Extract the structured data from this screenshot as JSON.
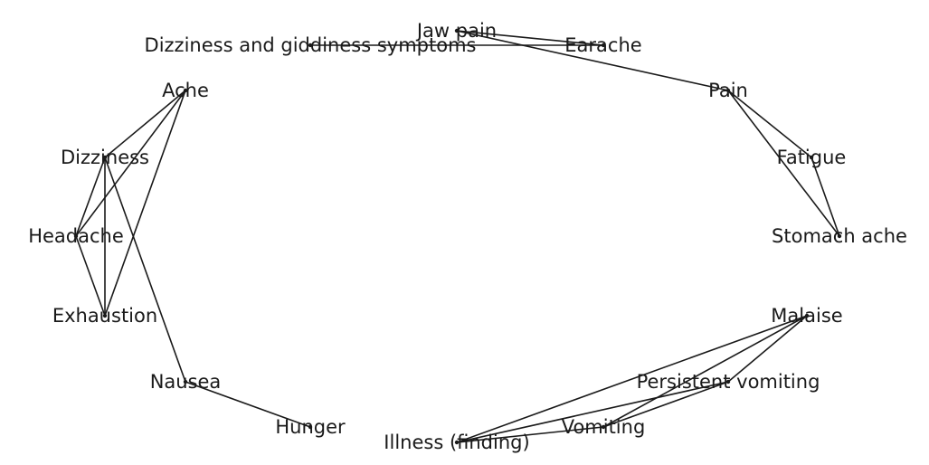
{
  "nodes": [
    {
      "id": "jaw-pain",
      "label": "Jaw pain"
    },
    {
      "id": "earache",
      "label": "Earache"
    },
    {
      "id": "dizziness-giddiness",
      "label": "Dizziness and giddiness symptoms"
    },
    {
      "id": "pain",
      "label": "Pain"
    },
    {
      "id": "ache",
      "label": "Ache"
    },
    {
      "id": "fatigue",
      "label": "Fatigue"
    },
    {
      "id": "dizziness",
      "label": "Dizziness"
    },
    {
      "id": "headache",
      "label": "Headache"
    },
    {
      "id": "stomach-ache",
      "label": "Stomach ache"
    },
    {
      "id": "exhaustion",
      "label": "Exhaustion"
    },
    {
      "id": "malaise",
      "label": "Malaise"
    },
    {
      "id": "nausea",
      "label": "Nausea"
    },
    {
      "id": "persistent-vomiting",
      "label": "Persistent vomiting"
    },
    {
      "id": "hunger",
      "label": "Hunger"
    },
    {
      "id": "vomiting",
      "label": "Vomiting"
    },
    {
      "id": "illness",
      "label": "Illness (finding)"
    }
  ],
  "edges": [
    [
      "jaw-pain",
      "earache"
    ],
    [
      "jaw-pain",
      "pain"
    ],
    [
      "earache",
      "dizziness-giddiness"
    ],
    [
      "pain",
      "fatigue"
    ],
    [
      "pain",
      "stomach-ache"
    ],
    [
      "fatigue",
      "stomach-ache"
    ],
    [
      "ache",
      "dizziness"
    ],
    [
      "ache",
      "headache"
    ],
    [
      "ache",
      "exhaustion"
    ],
    [
      "dizziness",
      "headache"
    ],
    [
      "dizziness",
      "exhaustion"
    ],
    [
      "dizziness",
      "nausea"
    ],
    [
      "headache",
      "exhaustion"
    ],
    [
      "nausea",
      "hunger"
    ],
    [
      "malaise",
      "persistent-vomiting"
    ],
    [
      "malaise",
      "vomiting"
    ],
    [
      "malaise",
      "illness"
    ],
    [
      "persistent-vomiting",
      "vomiting"
    ],
    [
      "persistent-vomiting",
      "illness"
    ],
    [
      "vomiting",
      "illness"
    ]
  ]
}
